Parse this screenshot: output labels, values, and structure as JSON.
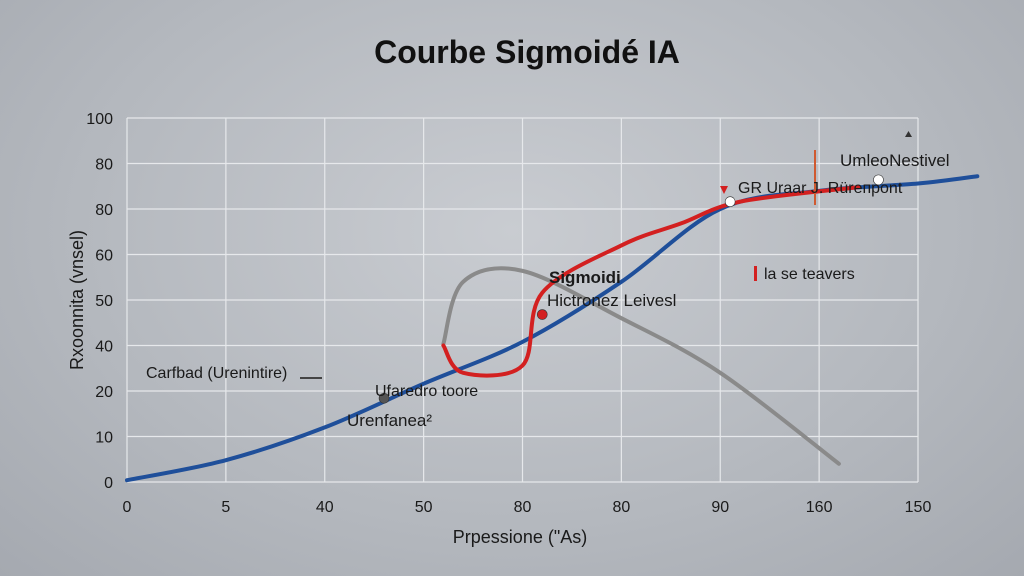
{
  "chart_data": {
    "type": "line",
    "title": "Courbe Sigmoidé IA",
    "xlabel": "Prpessione (\"As)",
    "ylabel": "Rxoonnita (vnsel)",
    "x_tick_labels": [
      "0",
      "5",
      "40",
      "50",
      "80",
      "80",
      "90",
      "160",
      "150"
    ],
    "y_tick_labels": [
      "0",
      "10",
      "20",
      "40",
      "50",
      "60",
      "80",
      "80",
      "100"
    ],
    "grid": true,
    "series": [
      {
        "color": "#1f4f9a",
        "style": "sigmoid",
        "x": [
          0,
          1,
          2,
          3,
          4,
          5,
          6,
          7,
          8,
          8.6
        ],
        "y": [
          0.5,
          6,
          15,
          27,
          38.5,
          55,
          75,
          80,
          82,
          84
        ]
      },
      {
        "color": "#d32020",
        "style": "s-curve",
        "x": [
          3.2,
          3.4,
          4.0,
          4.2,
          5.0,
          5.6,
          6.2,
          7.4
        ],
        "y": [
          37.5,
          30,
          32,
          52,
          65,
          71,
          77,
          81
        ]
      },
      {
        "color": "#8a8a8a",
        "style": "loop",
        "x": [
          3.2,
          3.4,
          4.0,
          5.0,
          6.0,
          7.2
        ],
        "y": [
          38,
          55,
          58,
          45,
          30,
          5
        ]
      }
    ],
    "points": [
      {
        "series": 0,
        "x": 2.6,
        "y": 23,
        "color": "#555"
      },
      {
        "series": 1,
        "x": 4.2,
        "y": 46,
        "color": "#d32020"
      },
      {
        "series": 1,
        "x": 6.1,
        "y": 77,
        "color": "#ffffff"
      },
      {
        "series": 0,
        "x": 7.6,
        "y": 83,
        "color": "#ffffff"
      }
    ],
    "annotations": [
      {
        "text": "Sigmoidi",
        "bold": true
      },
      {
        "text": "Hictronez Leivesl"
      },
      {
        "text": "UmleoNestivel"
      },
      {
        "text": "GR  Uraar J. Rüreпpont"
      },
      {
        "text": "la se teavers"
      },
      {
        "text": "Carfbad (Urenintire)"
      },
      {
        "text": "Ufaredro toore"
      },
      {
        "text": "Urenfanea²"
      }
    ]
  }
}
